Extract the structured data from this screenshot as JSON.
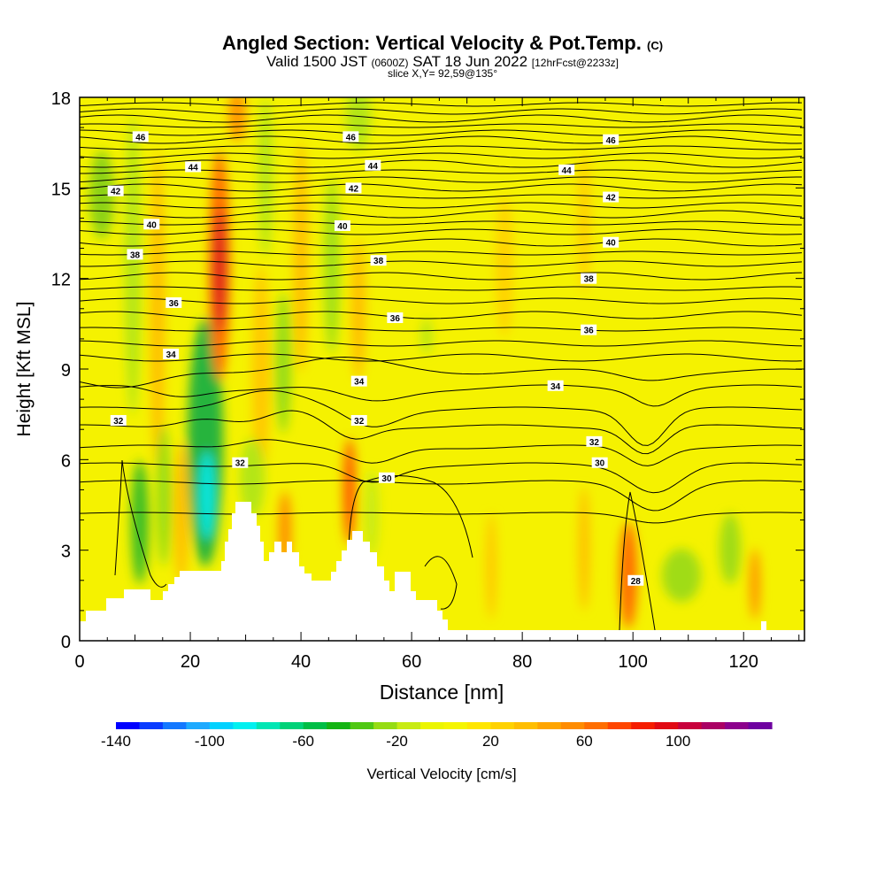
{
  "header": {
    "title_main": "Angled Section: Vertical Velocity & Pot.Temp.",
    "title_suffix": "(C)",
    "valid_a": "Valid 1500 JST",
    "valid_b": "(0600Z)",
    "valid_c": "SAT 18 Jun 2022",
    "valid_d": "[12hrFcst@2233z]",
    "slice": "slice X,Y= 92,59@135°"
  },
  "colors": {
    "background_field": "#f5f200",
    "frame": "#000000",
    "contour": "#000000",
    "terrain": "#ffffff"
  },
  "chart_data": {
    "type": "heatmap",
    "title": "Angled Section: Vertical Velocity & Pot.Temp.",
    "xlabel": "Distance [nm]",
    "ylabel": "Height [Kft MSL]",
    "xlim": [
      0,
      131
    ],
    "ylim": [
      0,
      18
    ],
    "x_ticks": [
      0,
      20,
      40,
      60,
      80,
      100,
      120
    ],
    "y_ticks": [
      0,
      3,
      6,
      9,
      12,
      15,
      18
    ],
    "colorbar": {
      "label": "Vertical Velocity [cm/s]",
      "tick_labels": [
        -140,
        -100,
        -60,
        -20,
        20,
        60,
        100
      ],
      "range": [
        -140,
        140
      ],
      "step": 10,
      "colors": [
        "#0000ff",
        "#0a3cff",
        "#1478ff",
        "#1eaaff",
        "#00d2ff",
        "#00f0f0",
        "#00e6b4",
        "#00d278",
        "#00be46",
        "#14b414",
        "#50c814",
        "#96dc14",
        "#c8eb14",
        "#ebf500",
        "#f5f500",
        "#ffe600",
        "#ffd200",
        "#ffbe00",
        "#ffa500",
        "#ff8c00",
        "#ff6e00",
        "#ff4600",
        "#f51e00",
        "#e10a14",
        "#c8003c",
        "#aa0064",
        "#8c008c",
        "#6e00a0"
      ]
    },
    "isentrope_labels": [
      {
        "value": "46",
        "x": 11,
        "y": 16.7
      },
      {
        "value": "46",
        "x": 49,
        "y": 16.7
      },
      {
        "value": "46",
        "x": 96,
        "y": 16.6
      },
      {
        "value": "44",
        "x": 20.5,
        "y": 15.7
      },
      {
        "value": "44",
        "x": 53,
        "y": 15.75
      },
      {
        "value": "44",
        "x": 88,
        "y": 15.6
      },
      {
        "value": "42",
        "x": 6.5,
        "y": 14.9
      },
      {
        "value": "42",
        "x": 49.5,
        "y": 15.0
      },
      {
        "value": "42",
        "x": 96,
        "y": 14.7
      },
      {
        "value": "40",
        "x": 13,
        "y": 13.8
      },
      {
        "value": "40",
        "x": 47.5,
        "y": 13.75
      },
      {
        "value": "40",
        "x": 96,
        "y": 13.2
      },
      {
        "value": "38",
        "x": 10,
        "y": 12.8
      },
      {
        "value": "38",
        "x": 54,
        "y": 12.6
      },
      {
        "value": "38",
        "x": 92,
        "y": 12.0
      },
      {
        "value": "36",
        "x": 17,
        "y": 11.2
      },
      {
        "value": "36",
        "x": 57,
        "y": 10.7
      },
      {
        "value": "36",
        "x": 92,
        "y": 10.3
      },
      {
        "value": "34",
        "x": 16.5,
        "y": 9.5
      },
      {
        "value": "34",
        "x": 50.5,
        "y": 8.6
      },
      {
        "value": "34",
        "x": 86,
        "y": 8.45
      },
      {
        "value": "32",
        "x": 7,
        "y": 7.3
      },
      {
        "value": "32",
        "x": 50.5,
        "y": 7.3
      },
      {
        "value": "32",
        "x": 93,
        "y": 6.6
      },
      {
        "value": "32",
        "x": 29,
        "y": 5.9
      },
      {
        "value": "30",
        "x": 55.5,
        "y": 5.4
      },
      {
        "value": "30",
        "x": 94,
        "y": 5.9
      },
      {
        "value": "28",
        "x": 100.5,
        "y": 2.0
      }
    ]
  }
}
